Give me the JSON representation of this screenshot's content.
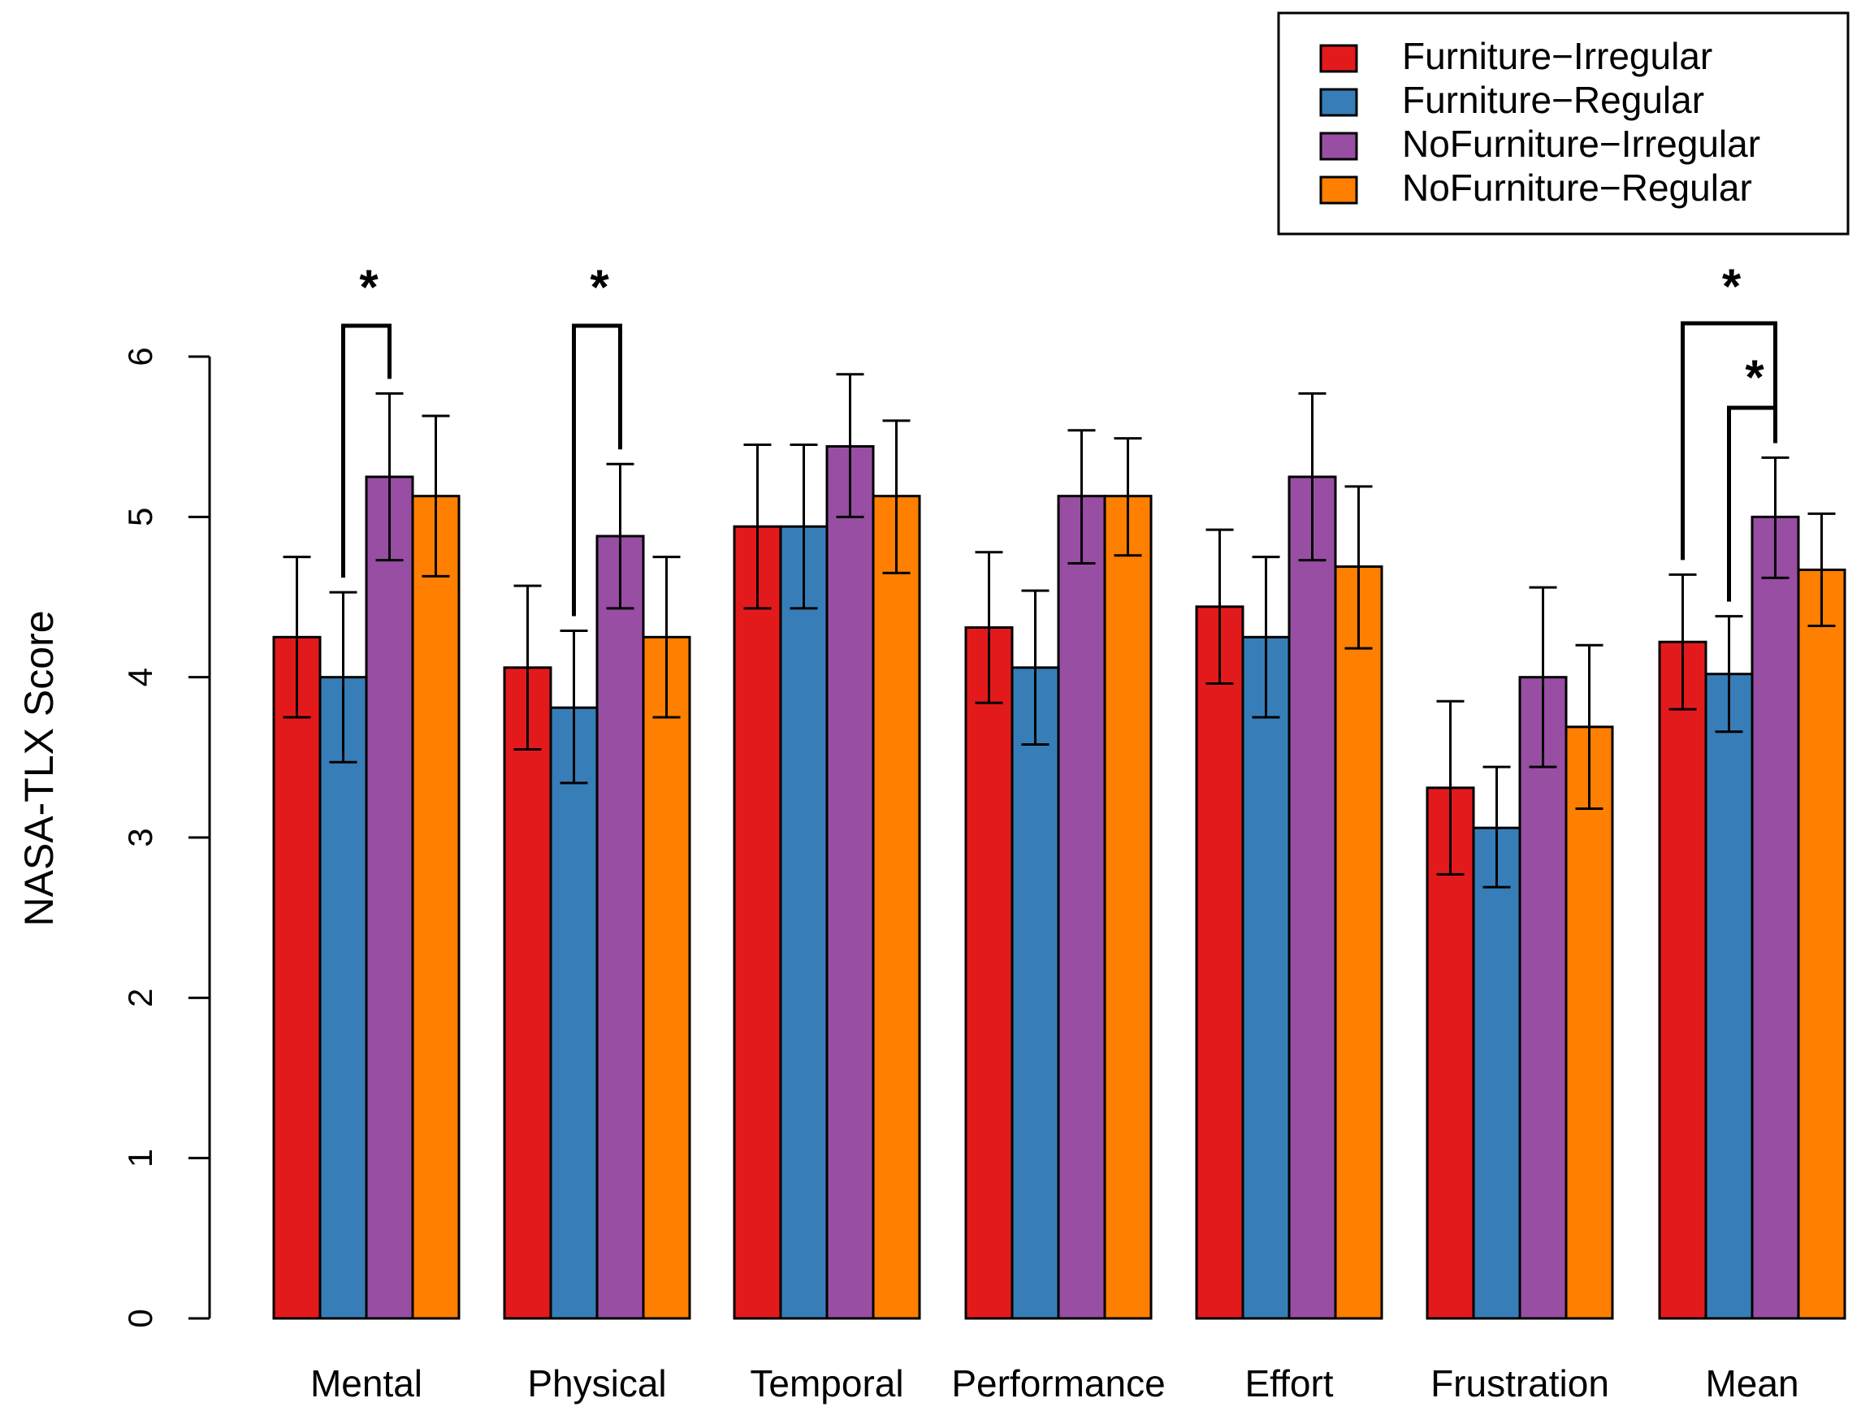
{
  "chart_data": {
    "type": "bar",
    "title": "",
    "xlabel": "",
    "ylabel": "NASA-TLX Score",
    "ylim": [
      0,
      6
    ],
    "yticks": [
      "0",
      "1",
      "2",
      "3",
      "4",
      "5",
      "6"
    ],
    "grid": false,
    "legend_position": "top-right",
    "categories": [
      "Mental",
      "Physical",
      "Temporal",
      "Performance",
      "Effort",
      "Frustration",
      "Mean"
    ],
    "series": [
      {
        "name": "Furniture−Irregular",
        "color": "#e31a1c",
        "values": [
          4.25,
          4.06,
          4.94,
          4.31,
          4.44,
          3.31,
          4.22
        ],
        "err_low": [
          3.75,
          3.55,
          4.43,
          3.84,
          3.96,
          2.77,
          3.8
        ],
        "err_high": [
          4.75,
          4.57,
          5.45,
          4.78,
          4.92,
          3.85,
          4.64
        ]
      },
      {
        "name": "Furniture−Regular",
        "color": "#377eb8",
        "values": [
          4.0,
          3.81,
          4.94,
          4.06,
          4.25,
          3.06,
          4.02
        ],
        "err_low": [
          3.47,
          3.34,
          4.43,
          3.58,
          3.75,
          2.69,
          3.66
        ],
        "err_high": [
          4.53,
          4.29,
          5.45,
          4.54,
          4.75,
          3.44,
          4.38
        ]
      },
      {
        "name": "NoFurniture−Irregular",
        "color": "#984ea3",
        "values": [
          5.25,
          4.88,
          5.44,
          5.13,
          5.25,
          4.0,
          5.0
        ],
        "err_low": [
          4.73,
          4.43,
          5.0,
          4.71,
          4.73,
          3.44,
          4.62
        ],
        "err_high": [
          5.77,
          5.33,
          5.89,
          5.54,
          5.77,
          4.56,
          5.37
        ]
      },
      {
        "name": "NoFurniture−Regular",
        "color": "#ff7f00",
        "values": [
          5.13,
          4.25,
          5.13,
          5.13,
          4.69,
          3.69,
          4.67
        ],
        "err_low": [
          4.63,
          3.75,
          4.65,
          4.76,
          4.18,
          3.18,
          4.32
        ],
        "err_high": [
          5.63,
          4.75,
          5.6,
          5.49,
          5.19,
          4.2,
          5.02
        ]
      }
    ],
    "significance": [
      {
        "category": "Mental",
        "from_series": 1,
        "to_series": 2,
        "label": "*"
      },
      {
        "category": "Physical",
        "from_series": 1,
        "to_series": 2,
        "label": "*"
      },
      {
        "category": "Mean",
        "from_series": 0,
        "to_series": 2,
        "label": "*"
      },
      {
        "category": "Mean",
        "from_series": 1,
        "to_series": 2,
        "label": "*"
      }
    ]
  }
}
